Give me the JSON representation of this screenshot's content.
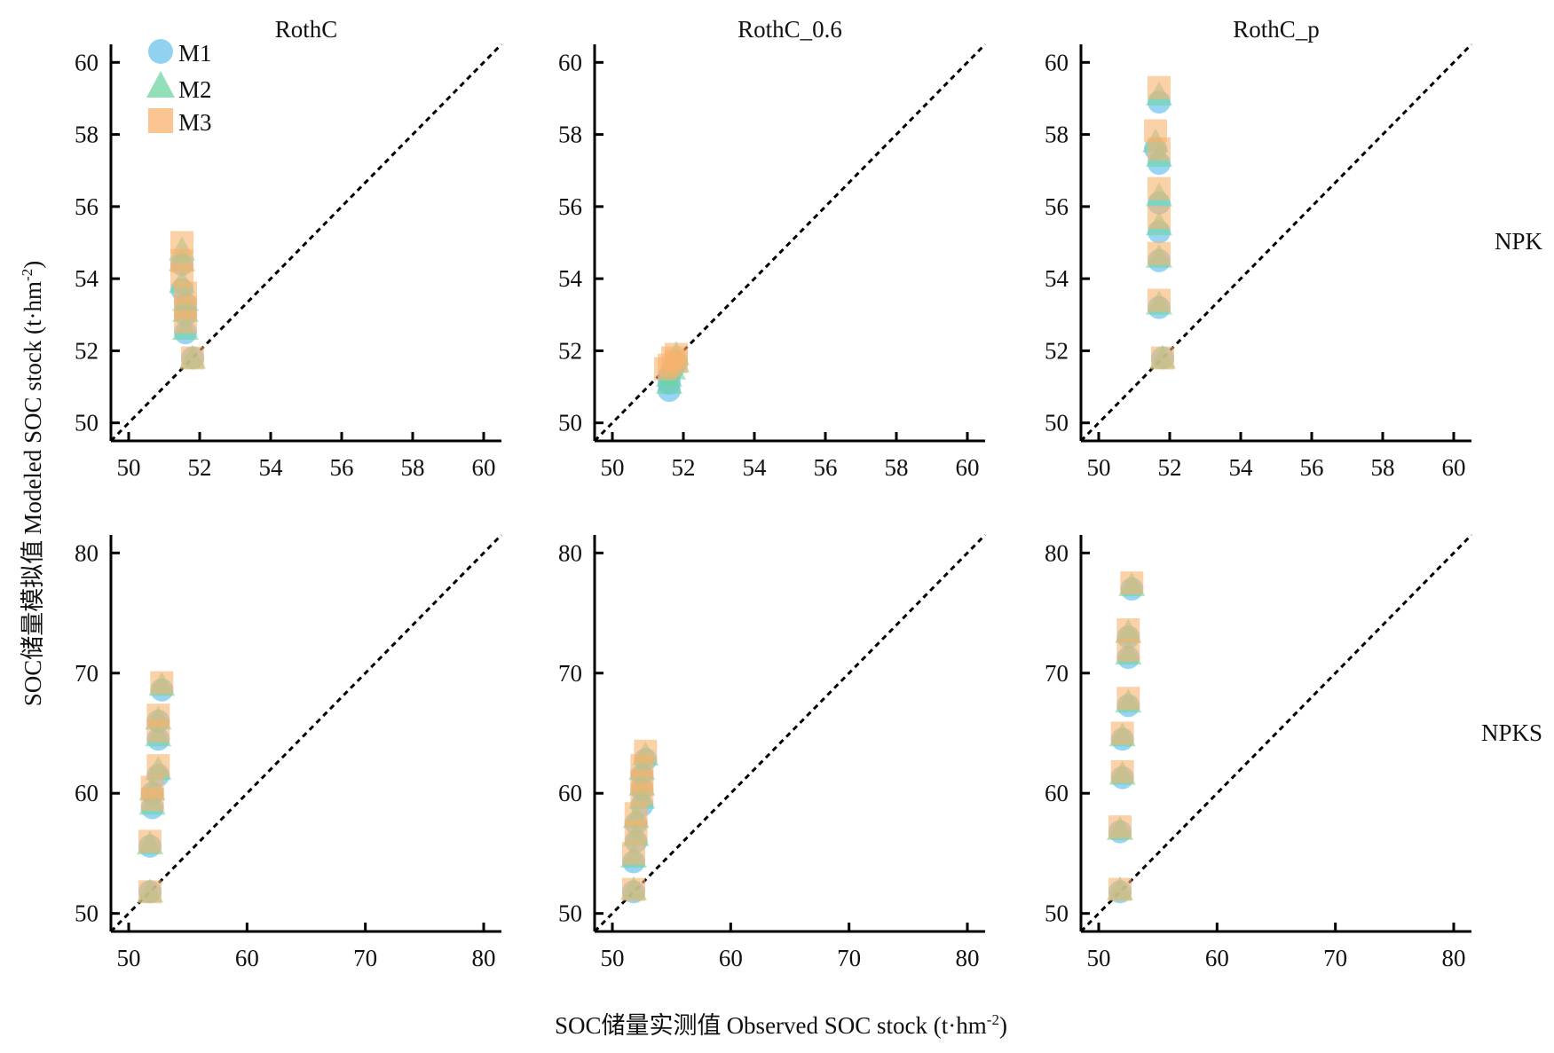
{
  "figure": {
    "ylabel_cn": "SOC储量模拟值",
    "ylabel_en": "Modeled SOC stock (t·hm",
    "ylabel_sup": "-2",
    "ylabel_close": ")",
    "xlabel_cn": "SOC储量实测值",
    "xlabel_en": "Observed SOC stock (t·hm",
    "xlabel_sup": "-2",
    "xlabel_close": ")",
    "columns": [
      "RothC",
      "RothC_0.6",
      "RothC_p"
    ],
    "rows": [
      "NPK",
      "NPKS"
    ]
  },
  "legend": [
    {
      "label": "M1",
      "marker": "circle",
      "color": "#6cc3ec"
    },
    {
      "label": "M2",
      "marker": "triangle",
      "color": "#6fd4a1"
    },
    {
      "label": "M3",
      "marker": "square",
      "color": "#f8b26c"
    }
  ],
  "chart_data": [
    {
      "type": "scatter",
      "title": "RothC",
      "row": "NPK",
      "xlim": [
        49.5,
        60.5
      ],
      "ylim": [
        49.5,
        60.5
      ],
      "xticks": [
        50,
        52,
        54,
        56,
        58,
        60
      ],
      "yticks": [
        50,
        52,
        54,
        56,
        58,
        60
      ],
      "reference": "1:1 line",
      "series": [
        {
          "name": "M1",
          "points": [
            [
              51.8,
              51.8
            ],
            [
              51.6,
              52.5
            ],
            [
              51.6,
              53.0
            ],
            [
              51.6,
              53.3
            ],
            [
              51.5,
              53.7
            ],
            [
              51.5,
              54.4
            ]
          ]
        },
        {
          "name": "M2",
          "points": [
            [
              51.8,
              51.8
            ],
            [
              51.6,
              52.6
            ],
            [
              51.6,
              53.1
            ],
            [
              51.6,
              53.4
            ],
            [
              51.5,
              53.9
            ],
            [
              51.5,
              54.5
            ],
            [
              51.5,
              54.8
            ]
          ]
        },
        {
          "name": "M3",
          "points": [
            [
              51.8,
              51.8
            ],
            [
              51.6,
              52.8
            ],
            [
              51.6,
              53.2
            ],
            [
              51.6,
              53.6
            ],
            [
              51.5,
              54.1
            ],
            [
              51.5,
              54.5
            ],
            [
              51.5,
              55.0
            ]
          ]
        }
      ]
    },
    {
      "type": "scatter",
      "title": "RothC_0.6",
      "row": "NPK",
      "xlim": [
        49.5,
        60.5
      ],
      "ylim": [
        49.5,
        60.5
      ],
      "xticks": [
        50,
        52,
        54,
        56,
        58,
        60
      ],
      "yticks": [
        50,
        52,
        54,
        56,
        58,
        60
      ],
      "reference": "1:1 line",
      "series": [
        {
          "name": "M1",
          "points": [
            [
              51.6,
              50.9
            ],
            [
              51.6,
              51.1
            ],
            [
              51.6,
              51.3
            ],
            [
              51.7,
              51.5
            ],
            [
              51.8,
              51.7
            ]
          ]
        },
        {
          "name": "M2",
          "points": [
            [
              51.6,
              51.1
            ],
            [
              51.6,
              51.3
            ],
            [
              51.7,
              51.5
            ],
            [
              51.8,
              51.7
            ],
            [
              51.8,
              51.9
            ]
          ]
        },
        {
          "name": "M3",
          "points": [
            [
              51.5,
              51.5
            ],
            [
              51.6,
              51.6
            ],
            [
              51.7,
              51.8
            ],
            [
              51.8,
              51.9
            ],
            [
              51.8,
              51.7
            ]
          ]
        }
      ]
    },
    {
      "type": "scatter",
      "title": "RothC_p",
      "row": "NPK",
      "xlim": [
        49.5,
        60.5
      ],
      "ylim": [
        49.5,
        60.5
      ],
      "xticks": [
        50,
        52,
        54,
        56,
        58,
        60
      ],
      "yticks": [
        50,
        52,
        54,
        56,
        58,
        60
      ],
      "reference": "1:1 line",
      "series": [
        {
          "name": "M1",
          "points": [
            [
              51.8,
              51.8
            ],
            [
              51.7,
              53.2
            ],
            [
              51.7,
              54.5
            ],
            [
              51.7,
              55.3
            ],
            [
              51.7,
              56.1
            ],
            [
              51.7,
              57.2
            ],
            [
              51.6,
              57.6
            ],
            [
              51.7,
              58.9
            ]
          ]
        },
        {
          "name": "M2",
          "points": [
            [
              51.8,
              51.8
            ],
            [
              51.7,
              53.3
            ],
            [
              51.7,
              54.6
            ],
            [
              51.7,
              55.5
            ],
            [
              51.7,
              56.3
            ],
            [
              51.7,
              57.4
            ],
            [
              51.6,
              57.8
            ],
            [
              51.7,
              59.1
            ]
          ]
        },
        {
          "name": "M3",
          "points": [
            [
              51.8,
              51.8
            ],
            [
              51.7,
              53.4
            ],
            [
              51.7,
              54.7
            ],
            [
              51.7,
              55.7
            ],
            [
              51.7,
              56.5
            ],
            [
              51.7,
              57.6
            ],
            [
              51.6,
              58.1
            ],
            [
              51.7,
              59.3
            ]
          ]
        }
      ]
    },
    {
      "type": "scatter",
      "title": "RothC",
      "row": "NPKS",
      "xlim": [
        48.5,
        81.5
      ],
      "ylim": [
        48.5,
        81.5
      ],
      "xticks": [
        50,
        60,
        70,
        80
      ],
      "yticks": [
        50,
        60,
        70,
        80
      ],
      "reference": "1:1 line",
      "series": [
        {
          "name": "M1",
          "points": [
            [
              51.8,
              51.8
            ],
            [
              51.8,
              55.6
            ],
            [
              52.0,
              58.8
            ],
            [
              52.0,
              60.0
            ],
            [
              52.5,
              61.5
            ],
            [
              52.5,
              64.5
            ],
            [
              52.5,
              66.0
            ],
            [
              52.8,
              68.6
            ]
          ]
        },
        {
          "name": "M2",
          "points": [
            [
              51.8,
              51.8
            ],
            [
              51.8,
              55.8
            ],
            [
              52.0,
              59.1
            ],
            [
              52.0,
              60.3
            ],
            [
              52.5,
              62.0
            ],
            [
              52.5,
              64.8
            ],
            [
              52.5,
              66.2
            ],
            [
              52.8,
              69.0
            ]
          ]
        },
        {
          "name": "M3",
          "points": [
            [
              51.8,
              51.8
            ],
            [
              51.8,
              56.0
            ],
            [
              52.0,
              59.5
            ],
            [
              52.0,
              60.5
            ],
            [
              52.5,
              62.3
            ],
            [
              52.5,
              65.2
            ],
            [
              52.5,
              66.5
            ],
            [
              52.8,
              69.2
            ]
          ]
        }
      ]
    },
    {
      "type": "scatter",
      "title": "RothC_0.6",
      "row": "NPKS",
      "xlim": [
        48.5,
        81.5
      ],
      "ylim": [
        48.5,
        81.5
      ],
      "xticks": [
        50,
        60,
        70,
        80
      ],
      "yticks": [
        50,
        60,
        70,
        80
      ],
      "reference": "1:1 line",
      "series": [
        {
          "name": "M1",
          "points": [
            [
              51.8,
              51.8
            ],
            [
              51.8,
              54.3
            ],
            [
              52.0,
              56.0
            ],
            [
              52.0,
              57.5
            ],
            [
              52.5,
              59.0
            ],
            [
              52.5,
              60.3
            ],
            [
              52.5,
              61.5
            ],
            [
              52.8,
              62.8
            ]
          ]
        },
        {
          "name": "M2",
          "points": [
            [
              51.8,
              52.0
            ],
            [
              51.8,
              54.7
            ],
            [
              52.0,
              56.5
            ],
            [
              52.0,
              58.0
            ],
            [
              52.5,
              59.6
            ],
            [
              52.5,
              60.7
            ],
            [
              52.5,
              62.0
            ],
            [
              52.8,
              63.2
            ]
          ]
        },
        {
          "name": "M3",
          "points": [
            [
              51.8,
              52.0
            ],
            [
              51.8,
              55.0
            ],
            [
              52.0,
              56.8
            ],
            [
              52.0,
              58.3
            ],
            [
              52.5,
              60.0
            ],
            [
              52.5,
              61.0
            ],
            [
              52.5,
              62.3
            ],
            [
              52.8,
              63.5
            ]
          ]
        }
      ]
    },
    {
      "type": "scatter",
      "title": "RothC_p",
      "row": "NPKS",
      "xlim": [
        48.5,
        81.5
      ],
      "ylim": [
        48.5,
        81.5
      ],
      "xticks": [
        50,
        60,
        70,
        80
      ],
      "yticks": [
        50,
        60,
        70,
        80
      ],
      "reference": "1:1 line",
      "series": [
        {
          "name": "M1",
          "points": [
            [
              51.8,
              51.8
            ],
            [
              51.8,
              56.8
            ],
            [
              52.0,
              61.3
            ],
            [
              52.0,
              64.5
            ],
            [
              52.5,
              67.3
            ],
            [
              52.5,
              71.3
            ],
            [
              52.5,
              73.0
            ],
            [
              52.8,
              77.0
            ]
          ]
        },
        {
          "name": "M2",
          "points": [
            [
              51.8,
              52.0
            ],
            [
              51.8,
              57.0
            ],
            [
              52.0,
              61.6
            ],
            [
              52.0,
              64.8
            ],
            [
              52.5,
              67.6
            ],
            [
              52.5,
              71.6
            ],
            [
              52.5,
              73.4
            ],
            [
              52.8,
              77.3
            ]
          ]
        },
        {
          "name": "M3",
          "points": [
            [
              51.8,
              52.0
            ],
            [
              51.8,
              57.2
            ],
            [
              52.0,
              61.8
            ],
            [
              52.0,
              65.0
            ],
            [
              52.5,
              67.9
            ],
            [
              52.5,
              71.9
            ],
            [
              52.5,
              73.6
            ],
            [
              52.8,
              77.5
            ]
          ]
        }
      ]
    }
  ]
}
